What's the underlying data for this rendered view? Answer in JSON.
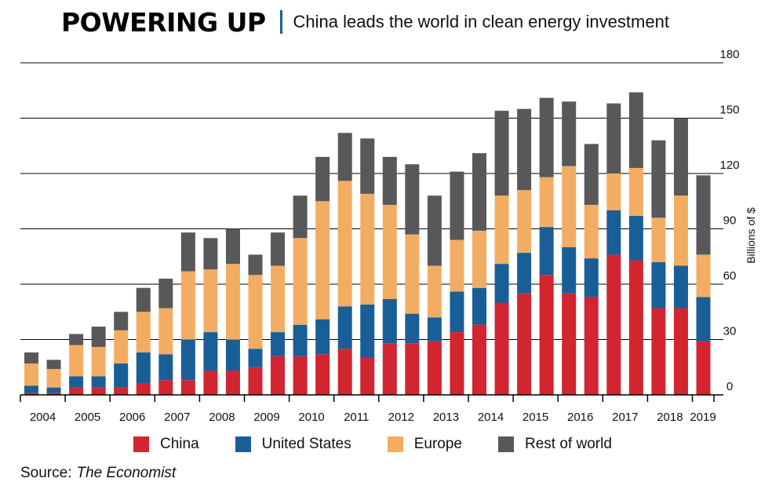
{
  "header": {
    "title": "POWERING UP",
    "subtitle": "China leads the world in clean energy investment"
  },
  "chart_data": {
    "type": "bar",
    "stacked": true,
    "x_labels": [
      "2004",
      "2005",
      "2006",
      "2007",
      "2008",
      "2009",
      "2010",
      "2011",
      "2012",
      "2013",
      "2014",
      "2015",
      "2016",
      "2017",
      "2018",
      "2019"
    ],
    "periods": [
      "2004",
      "2004",
      "2005",
      "2005",
      "2006",
      "2006",
      "2007",
      "2007",
      "2008",
      "2008",
      "2009",
      "2009",
      "2010",
      "2010",
      "2011",
      "2011",
      "2012",
      "2012",
      "2013",
      "2013",
      "2014",
      "2014",
      "2015",
      "2015",
      "2016",
      "2016",
      "2017",
      "2017",
      "2018",
      "2018",
      "2019"
    ],
    "series": [
      {
        "name": "China",
        "color": "#d12530",
        "values": [
          1,
          1,
          4,
          4,
          4,
          6,
          8,
          8,
          13,
          13,
          15,
          21,
          21,
          22,
          25,
          20,
          28,
          28,
          29,
          34,
          38,
          50,
          55,
          65,
          55,
          53,
          76,
          73,
          47,
          47,
          29
        ]
      },
      {
        "name": "United States",
        "color": "#1a5e97",
        "values": [
          4,
          3,
          6,
          6,
          13,
          17,
          14,
          22,
          21,
          17,
          10,
          13,
          17,
          19,
          23,
          29,
          24,
          16,
          13,
          22,
          20,
          21,
          22,
          26,
          25,
          21,
          24,
          24,
          25,
          23,
          24
        ]
      },
      {
        "name": "Europe",
        "color": "#f3ad63",
        "values": [
          12,
          10,
          17,
          16,
          18,
          22,
          25,
          37,
          34,
          41,
          40,
          36,
          47,
          64,
          68,
          60,
          51,
          43,
          28,
          28,
          31,
          37,
          34,
          27,
          44,
          29,
          20,
          26,
          24,
          38,
          23
        ]
      },
      {
        "name": "Rest of world",
        "color": "#58585a",
        "values": [
          6,
          5,
          6,
          11,
          10,
          13,
          16,
          21,
          17,
          19,
          11,
          18,
          23,
          24,
          26,
          30,
          26,
          38,
          38,
          37,
          42,
          46,
          44,
          43,
          35,
          33,
          38,
          41,
          42,
          42,
          43
        ]
      }
    ],
    "ylabel": "Billions of $",
    "yticks": [
      0,
      30,
      60,
      90,
      120,
      150,
      180
    ],
    "ylim": [
      0,
      180
    ],
    "legend_position": "bottom",
    "grid": true
  },
  "source": {
    "label": "Source:",
    "name": "The Economist"
  }
}
